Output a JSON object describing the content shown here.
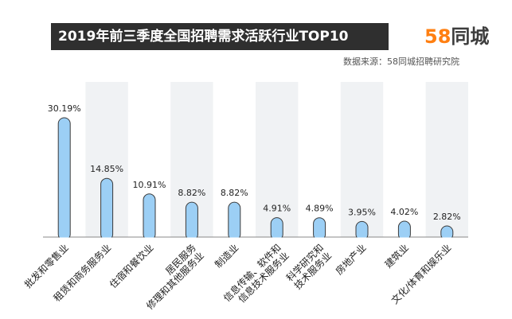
{
  "header": {
    "title": "2019年前三季度全国招聘需求活跃行业TOP10",
    "logo_number": "58",
    "logo_text": "同城",
    "source": "数据来源：58同城招聘研究院"
  },
  "colors": {
    "title_bg": "#2f2f2f",
    "bar_fill": "#9ccff5",
    "bar_stroke": "#3a3a3a",
    "stripe": "#f0f2f4",
    "logo_orange": "#ff7f11"
  },
  "chart_data": {
    "type": "bar",
    "title": "2019年前三季度全国招聘需求活跃行业TOP10",
    "categories": [
      [
        "批发和零售业"
      ],
      [
        "租赁和商务服务业"
      ],
      [
        "住宿和餐饮业"
      ],
      [
        "居民服务",
        "修理和其他服务业"
      ],
      [
        "制造业"
      ],
      [
        "信息传输、软件和",
        "信息技术服务业"
      ],
      [
        "科学研究和",
        "技术服务业"
      ],
      [
        "房地产业"
      ],
      [
        "建筑业"
      ],
      [
        "文化/体育和娱乐业"
      ]
    ],
    "values": [
      30.19,
      14.85,
      10.91,
      8.82,
      8.82,
      4.91,
      4.89,
      3.95,
      4.02,
      2.82
    ],
    "labels": [
      "30.19%",
      "14.85%",
      "10.91%",
      "8.82%",
      "8.82%",
      "4.91%",
      "4.89%",
      "3.95%",
      "4.02%",
      "2.82%"
    ],
    "unit": "%",
    "ylim": [
      0,
      30.19
    ],
    "grid": false,
    "legend": "none"
  }
}
